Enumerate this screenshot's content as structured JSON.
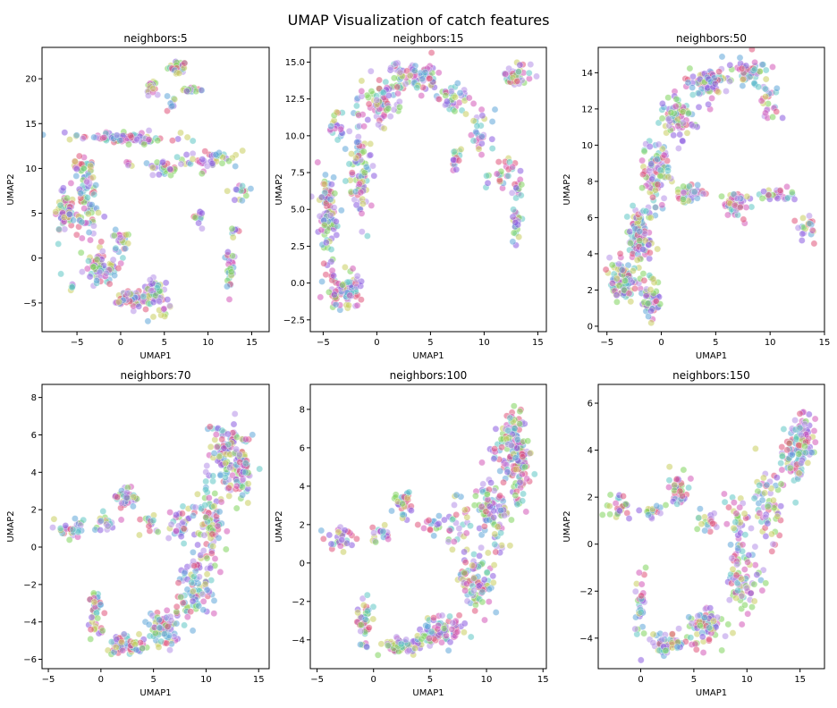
{
  "figure": {
    "title": "UMAP Visualization of catch features",
    "palette": [
      "#8a5be0",
      "#d457b8",
      "#7fd35c",
      "#c8cd5e",
      "#5fa6d8",
      "#e0537a",
      "#5ec7c5",
      "#b48fe8"
    ]
  },
  "chart_data": [
    {
      "type": "scatter",
      "title": "neighbors:5",
      "xlabel": "UMAP1",
      "ylabel": "UMAP2",
      "xlim": [
        -9,
        17
      ],
      "ylim": [
        -8.2,
        23.5
      ],
      "xticks": [
        -5,
        0,
        5,
        10,
        15
      ],
      "yticks": [
        -5,
        0,
        5,
        10,
        15,
        20
      ],
      "clusters": [
        {
          "x": 6.5,
          "y": 21.3,
          "sx": 0.9,
          "sy": 0.5,
          "n": 45
        },
        {
          "x": 8.0,
          "y": 18.7,
          "sx": 0.8,
          "sy": 0.3,
          "n": 22
        },
        {
          "x": 3.5,
          "y": 19.0,
          "sx": 0.6,
          "sy": 0.6,
          "n": 20
        },
        {
          "x": 5.8,
          "y": 17.0,
          "sx": 0.5,
          "sy": 0.7,
          "n": 10
        },
        {
          "x": 0.5,
          "y": 13.4,
          "sx": 4.5,
          "sy": 0.5,
          "n": 90
        },
        {
          "x": 10.0,
          "y": 11.0,
          "sx": 3.0,
          "sy": 1.0,
          "n": 45
        },
        {
          "x": 13.5,
          "y": 7.5,
          "sx": 1.0,
          "sy": 1.0,
          "n": 16
        },
        {
          "x": -4.5,
          "y": 10.0,
          "sx": 1.0,
          "sy": 1.2,
          "n": 30
        },
        {
          "x": -6.5,
          "y": 5.0,
          "sx": 1.0,
          "sy": 2.0,
          "n": 55
        },
        {
          "x": -4.0,
          "y": 6.0,
          "sx": 1.5,
          "sy": 3.0,
          "n": 70
        },
        {
          "x": -2.5,
          "y": -1.0,
          "sx": 1.8,
          "sy": 1.5,
          "n": 80
        },
        {
          "x": 1.5,
          "y": -4.5,
          "sx": 2.0,
          "sy": 0.8,
          "n": 80
        },
        {
          "x": 4.0,
          "y": -4.0,
          "sx": 1.3,
          "sy": 1.5,
          "n": 60
        },
        {
          "x": 0.0,
          "y": 2.0,
          "sx": 0.8,
          "sy": 1.2,
          "n": 25
        },
        {
          "x": 5.0,
          "y": 10.0,
          "sx": 1.5,
          "sy": 0.8,
          "n": 25
        },
        {
          "x": 9.0,
          "y": 4.5,
          "sx": 0.6,
          "sy": 1.0,
          "n": 12
        },
        {
          "x": 12.5,
          "y": -1.5,
          "sx": 0.6,
          "sy": 1.6,
          "n": 25
        },
        {
          "x": 13.0,
          "y": 3.0,
          "sx": 0.4,
          "sy": 0.8,
          "n": 8
        },
        {
          "x": -5.5,
          "y": -3.0,
          "sx": 0.3,
          "sy": 0.4,
          "n": 6
        },
        {
          "x": 1.0,
          "y": 10.5,
          "sx": 0.5,
          "sy": 0.3,
          "n": 6
        }
      ]
    },
    {
      "type": "scatter",
      "title": "neighbors:15",
      "xlabel": "UMAP1",
      "ylabel": "UMAP2",
      "xlim": [
        -6.2,
        15.8
      ],
      "ylim": [
        -3.3,
        16
      ],
      "xticks": [
        -5,
        0,
        5,
        10,
        15
      ],
      "yticks": [
        -2.5,
        0.0,
        2.5,
        5.0,
        7.5,
        10.0,
        12.5,
        15.0
      ],
      "clusters": [
        {
          "x": -3.0,
          "y": -0.5,
          "sx": 1.2,
          "sy": 1.0,
          "n": 90
        },
        {
          "x": -4.5,
          "y": 4.5,
          "sx": 0.8,
          "sy": 2.5,
          "n": 90
        },
        {
          "x": -1.5,
          "y": 7.5,
          "sx": 1.0,
          "sy": 3.0,
          "n": 80
        },
        {
          "x": 0.5,
          "y": 12.5,
          "sx": 1.5,
          "sy": 1.3,
          "n": 80
        },
        {
          "x": 3.5,
          "y": 14.0,
          "sx": 2.0,
          "sy": 0.8,
          "n": 80
        },
        {
          "x": 7.0,
          "y": 12.5,
          "sx": 1.3,
          "sy": 0.8,
          "n": 35
        },
        {
          "x": 9.5,
          "y": 10.0,
          "sx": 1.0,
          "sy": 1.5,
          "n": 30
        },
        {
          "x": 11.5,
          "y": 7.5,
          "sx": 1.0,
          "sy": 1.2,
          "n": 25
        },
        {
          "x": 13.0,
          "y": 14.0,
          "sx": 1.0,
          "sy": 0.8,
          "n": 45
        },
        {
          "x": 13.0,
          "y": 5.0,
          "sx": 0.4,
          "sy": 2.5,
          "n": 35
        },
        {
          "x": 7.5,
          "y": 8.5,
          "sx": 0.4,
          "sy": 0.7,
          "n": 15
        },
        {
          "x": -3.5,
          "y": 10.5,
          "sx": 0.8,
          "sy": 1.0,
          "n": 20
        }
      ]
    },
    {
      "type": "scatter",
      "title": "neighbors:50",
      "xlabel": "UMAP1",
      "ylabel": "UMAP2",
      "xlim": [
        -5.8,
        15
      ],
      "ylim": [
        -0.3,
        15.4
      ],
      "xticks": [
        -5,
        0,
        5,
        10,
        15
      ],
      "yticks": [
        0,
        2,
        4,
        6,
        8,
        10,
        12,
        14
      ],
      "clusters": [
        {
          "x": -3.5,
          "y": 2.5,
          "sx": 1.0,
          "sy": 1.0,
          "n": 100
        },
        {
          "x": -2.0,
          "y": 5.0,
          "sx": 1.0,
          "sy": 1.5,
          "n": 100
        },
        {
          "x": -0.5,
          "y": 8.5,
          "sx": 1.0,
          "sy": 1.5,
          "n": 90
        },
        {
          "x": 1.5,
          "y": 11.5,
          "sx": 1.3,
          "sy": 1.0,
          "n": 80
        },
        {
          "x": 4.5,
          "y": 13.5,
          "sx": 1.5,
          "sy": 0.7,
          "n": 80
        },
        {
          "x": 8.0,
          "y": 14.0,
          "sx": 1.5,
          "sy": 0.6,
          "n": 50
        },
        {
          "x": 10.0,
          "y": 12.5,
          "sx": 0.8,
          "sy": 0.8,
          "n": 25
        },
        {
          "x": -1.0,
          "y": 1.5,
          "sx": 0.8,
          "sy": 1.0,
          "n": 50
        },
        {
          "x": 2.5,
          "y": 7.3,
          "sx": 1.3,
          "sy": 0.5,
          "n": 40
        },
        {
          "x": 7.0,
          "y": 6.8,
          "sx": 1.0,
          "sy": 0.6,
          "n": 45
        },
        {
          "x": 10.5,
          "y": 7.3,
          "sx": 1.2,
          "sy": 0.4,
          "n": 30
        },
        {
          "x": 13.5,
          "y": 5.5,
          "sx": 0.7,
          "sy": 0.6,
          "n": 20
        }
      ]
    },
    {
      "type": "scatter",
      "title": "neighbors:70",
      "xlabel": "UMAP1",
      "ylabel": "UMAP2",
      "xlim": [
        -5.6,
        16
      ],
      "ylim": [
        -6.5,
        8.7
      ],
      "xticks": [
        -5,
        0,
        5,
        10,
        15
      ],
      "yticks": [
        -6,
        -4,
        -2,
        0,
        2,
        4,
        6,
        8
      ],
      "clusters": [
        {
          "x": -3.0,
          "y": 1.0,
          "sx": 1.3,
          "sy": 0.5,
          "n": 30
        },
        {
          "x": 0.5,
          "y": 1.3,
          "sx": 1.0,
          "sy": 0.4,
          "n": 20
        },
        {
          "x": 2.5,
          "y": 2.6,
          "sx": 0.8,
          "sy": 0.6,
          "n": 35
        },
        {
          "x": 4.5,
          "y": 1.2,
          "sx": 0.8,
          "sy": 0.5,
          "n": 15
        },
        {
          "x": 7.5,
          "y": 1.5,
          "sx": 1.0,
          "sy": 1.0,
          "n": 30
        },
        {
          "x": -0.5,
          "y": -3.5,
          "sx": 0.6,
          "sy": 1.0,
          "n": 40
        },
        {
          "x": 2.5,
          "y": -5.3,
          "sx": 1.5,
          "sy": 0.4,
          "n": 70
        },
        {
          "x": 6.0,
          "y": -4.3,
          "sx": 1.5,
          "sy": 0.8,
          "n": 80
        },
        {
          "x": 9.0,
          "y": -2.0,
          "sx": 1.3,
          "sy": 1.5,
          "n": 90
        },
        {
          "x": 10.5,
          "y": 1.5,
          "sx": 1.2,
          "sy": 1.5,
          "n": 90
        },
        {
          "x": 12.0,
          "y": 5.0,
          "sx": 1.2,
          "sy": 1.5,
          "n": 100
        },
        {
          "x": 13.5,
          "y": 4.0,
          "sx": 0.8,
          "sy": 1.5,
          "n": 60
        }
      ]
    },
    {
      "type": "scatter",
      "title": "neighbors:100",
      "xlabel": "UMAP1",
      "ylabel": "UMAP2",
      "xlim": [
        -5.6,
        15.3
      ],
      "ylim": [
        -5.5,
        9.3
      ],
      "xticks": [
        -5,
        0,
        5,
        10,
        15
      ],
      "yticks": [
        -4,
        -2,
        0,
        2,
        4,
        6,
        8
      ],
      "clusters": [
        {
          "x": -3.0,
          "y": 1.3,
          "sx": 1.3,
          "sy": 0.5,
          "n": 30
        },
        {
          "x": 0.5,
          "y": 1.5,
          "sx": 1.0,
          "sy": 0.4,
          "n": 20
        },
        {
          "x": 2.5,
          "y": 3.0,
          "sx": 0.7,
          "sy": 0.6,
          "n": 35
        },
        {
          "x": 5.0,
          "y": 2.0,
          "sx": 1.0,
          "sy": 0.4,
          "n": 15
        },
        {
          "x": 7.5,
          "y": 2.0,
          "sx": 1.0,
          "sy": 1.0,
          "n": 30
        },
        {
          "x": -0.8,
          "y": -3.0,
          "sx": 0.6,
          "sy": 1.0,
          "n": 40
        },
        {
          "x": 2.5,
          "y": -4.3,
          "sx": 1.5,
          "sy": 0.4,
          "n": 70
        },
        {
          "x": 6.0,
          "y": -3.5,
          "sx": 1.5,
          "sy": 0.7,
          "n": 80
        },
        {
          "x": 9.0,
          "y": -1.0,
          "sx": 1.3,
          "sy": 1.5,
          "n": 90
        },
        {
          "x": 10.5,
          "y": 2.5,
          "sx": 1.2,
          "sy": 1.5,
          "n": 90
        },
        {
          "x": 12.0,
          "y": 6.0,
          "sx": 1.2,
          "sy": 1.5,
          "n": 100
        },
        {
          "x": 13.0,
          "y": 5.0,
          "sx": 0.8,
          "sy": 1.5,
          "n": 60
        }
      ]
    },
    {
      "type": "scatter",
      "title": "neighbors:150",
      "xlabel": "UMAP1",
      "ylabel": "UMAP2",
      "xlim": [
        -4,
        17.3
      ],
      "ylim": [
        -5.3,
        6.8
      ],
      "xticks": [
        0,
        5,
        10,
        15
      ],
      "yticks": [
        -4,
        -2,
        0,
        2,
        4,
        6
      ],
      "clusters": [
        {
          "x": -2.0,
          "y": 1.7,
          "sx": 0.8,
          "sy": 0.5,
          "n": 25
        },
        {
          "x": 1.0,
          "y": 1.3,
          "sx": 0.8,
          "sy": 0.3,
          "n": 20
        },
        {
          "x": 3.5,
          "y": 2.3,
          "sx": 0.8,
          "sy": 0.6,
          "n": 40
        },
        {
          "x": 6.5,
          "y": 0.9,
          "sx": 1.0,
          "sy": 0.4,
          "n": 20
        },
        {
          "x": 9.0,
          "y": 1.2,
          "sx": 1.0,
          "sy": 0.8,
          "n": 30
        },
        {
          "x": 0.0,
          "y": -2.5,
          "sx": 0.5,
          "sy": 1.2,
          "n": 35
        },
        {
          "x": 2.5,
          "y": -4.2,
          "sx": 1.3,
          "sy": 0.4,
          "n": 60
        },
        {
          "x": 6.0,
          "y": -3.5,
          "sx": 1.5,
          "sy": 0.7,
          "n": 70
        },
        {
          "x": 9.5,
          "y": -1.5,
          "sx": 1.3,
          "sy": 1.3,
          "n": 80
        },
        {
          "x": 12.0,
          "y": 1.5,
          "sx": 1.0,
          "sy": 1.2,
          "n": 60
        },
        {
          "x": 14.5,
          "y": 3.8,
          "sx": 1.0,
          "sy": 1.2,
          "n": 80
        },
        {
          "x": 15.5,
          "y": 4.5,
          "sx": 0.8,
          "sy": 1.0,
          "n": 50
        }
      ]
    }
  ]
}
